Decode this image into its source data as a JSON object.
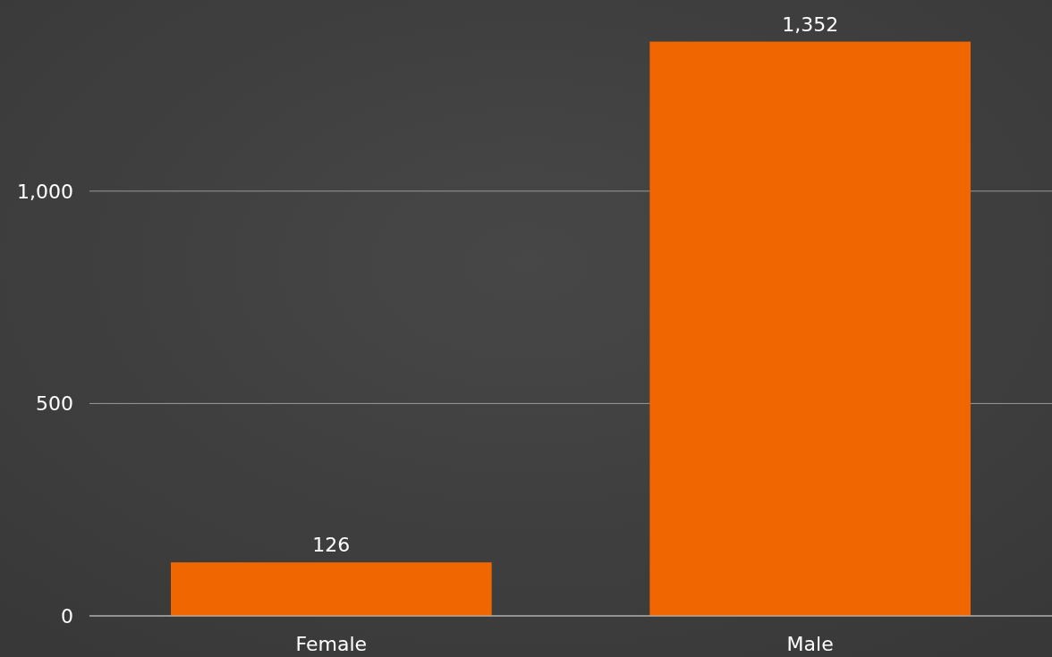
{
  "chart_data": {
    "type": "bar",
    "categories": [
      "Female",
      "Male"
    ],
    "values": [
      126,
      1352
    ],
    "color": "#f06600",
    "value_labels": [
      "126",
      "1,352"
    ],
    "ylim": [
      0,
      1450
    ],
    "yticks": [
      0,
      500,
      {
        "value": 1000,
        "label": "1,000"
      }
    ],
    "grid": "y"
  }
}
